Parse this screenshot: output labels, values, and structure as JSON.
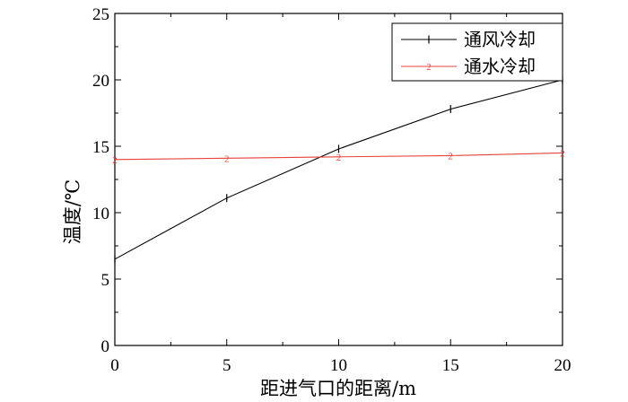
{
  "chart_data": {
    "type": "line",
    "x": [
      0,
      5,
      10,
      15,
      20
    ],
    "series": [
      {
        "name": "通风冷却",
        "values": [
          6.5,
          11.1,
          14.8,
          17.8,
          20.0
        ],
        "color": "#000000",
        "marker": "|"
      },
      {
        "name": "通水冷却",
        "values": [
          14.0,
          14.1,
          14.2,
          14.3,
          14.5
        ],
        "color": "#e8423a",
        "marker": "2"
      }
    ],
    "xlabel": "距进气口的距离/m",
    "ylabel": "温度/℃",
    "xlim": [
      0,
      20
    ],
    "ylim": [
      0,
      25
    ],
    "xticks": [
      0,
      5,
      10,
      15,
      20
    ],
    "yticks": [
      0,
      5,
      10,
      15,
      20,
      25
    ],
    "grid": false,
    "legend_position": "top-right"
  }
}
